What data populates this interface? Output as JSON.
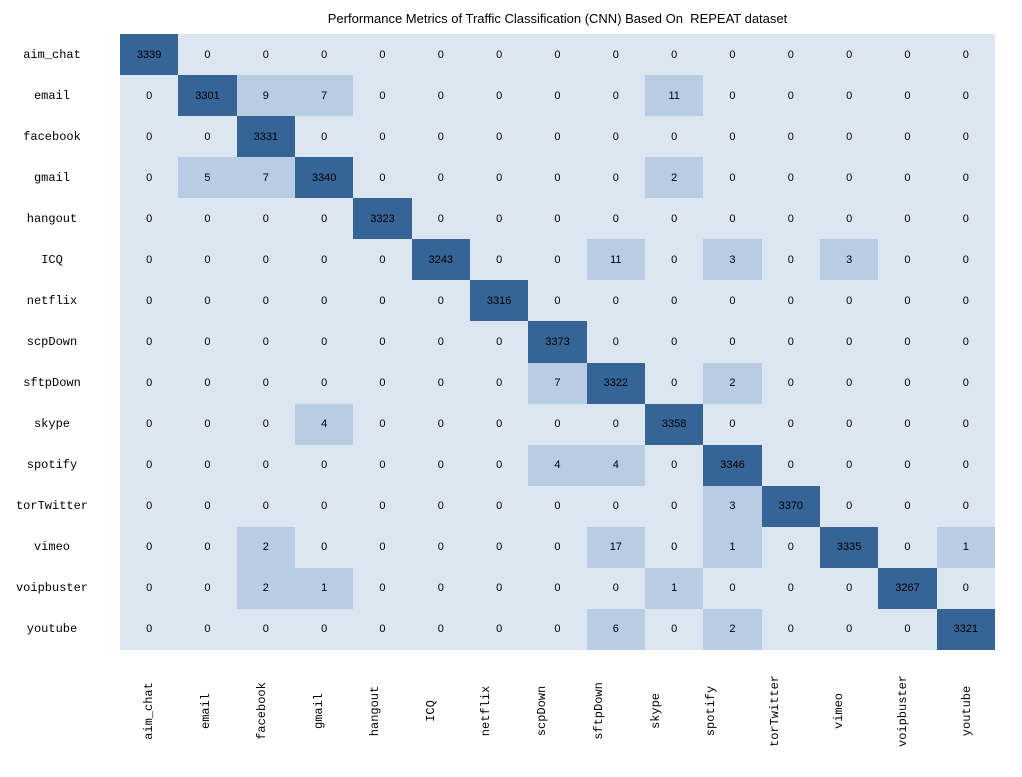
{
  "title": "Performance Metrics of Traffic Classification (CNN) Based On  REPEAT dataset",
  "chart_data": {
    "type": "heatmap",
    "subtype": "confusion-matrix",
    "title": "Performance Metrics of Traffic Classification (CNN) Based On  REPEAT dataset",
    "categories": [
      "aim_chat",
      "email",
      "facebook",
      "gmail",
      "hangout",
      "ICQ",
      "netflix",
      "scpDown",
      "sftpDown",
      "skype",
      "spotify",
      "torTwitter",
      "vimeo",
      "voipbuster",
      "youtube"
    ],
    "x_axis_labels_rotation_deg": -90,
    "grid": "off",
    "legend": "none",
    "matrix": [
      [
        3339,
        0,
        0,
        0,
        0,
        0,
        0,
        0,
        0,
        0,
        0,
        0,
        0,
        0,
        0
      ],
      [
        0,
        3301,
        9,
        7,
        0,
        0,
        0,
        0,
        0,
        11,
        0,
        0,
        0,
        0,
        0
      ],
      [
        0,
        0,
        3331,
        0,
        0,
        0,
        0,
        0,
        0,
        0,
        0,
        0,
        0,
        0,
        0
      ],
      [
        0,
        5,
        7,
        3340,
        0,
        0,
        0,
        0,
        0,
        2,
        0,
        0,
        0,
        0,
        0
      ],
      [
        0,
        0,
        0,
        0,
        3323,
        0,
        0,
        0,
        0,
        0,
        0,
        0,
        0,
        0,
        0
      ],
      [
        0,
        0,
        0,
        0,
        0,
        3243,
        0,
        0,
        11,
        0,
        3,
        0,
        3,
        0,
        0
      ],
      [
        0,
        0,
        0,
        0,
        0,
        0,
        3316,
        0,
        0,
        0,
        0,
        0,
        0,
        0,
        0
      ],
      [
        0,
        0,
        0,
        0,
        0,
        0,
        0,
        3373,
        0,
        0,
        0,
        0,
        0,
        0,
        0
      ],
      [
        0,
        0,
        0,
        0,
        0,
        0,
        0,
        7,
        3322,
        0,
        2,
        0,
        0,
        0,
        0
      ],
      [
        0,
        0,
        0,
        4,
        0,
        0,
        0,
        0,
        0,
        3358,
        0,
        0,
        0,
        0,
        0
      ],
      [
        0,
        0,
        0,
        0,
        0,
        0,
        0,
        4,
        4,
        0,
        3346,
        0,
        0,
        0,
        0
      ],
      [
        0,
        0,
        0,
        0,
        0,
        0,
        0,
        0,
        0,
        0,
        3,
        3370,
        0,
        0,
        0
      ],
      [
        0,
        0,
        2,
        0,
        0,
        0,
        0,
        0,
        17,
        0,
        1,
        0,
        3335,
        0,
        1
      ],
      [
        0,
        0,
        2,
        1,
        0,
        0,
        0,
        0,
        0,
        1,
        0,
        0,
        0,
        3267,
        0
      ],
      [
        0,
        0,
        0,
        0,
        0,
        0,
        0,
        0,
        6,
        0,
        2,
        0,
        0,
        0,
        3321
      ]
    ],
    "colors": {
      "zero_cell": "#dce6f1",
      "offdiagonal_nonzero_cell": "#b8cce4",
      "diagonal_cell": "#376496",
      "text": "#000000",
      "background": "#ffffff"
    }
  }
}
